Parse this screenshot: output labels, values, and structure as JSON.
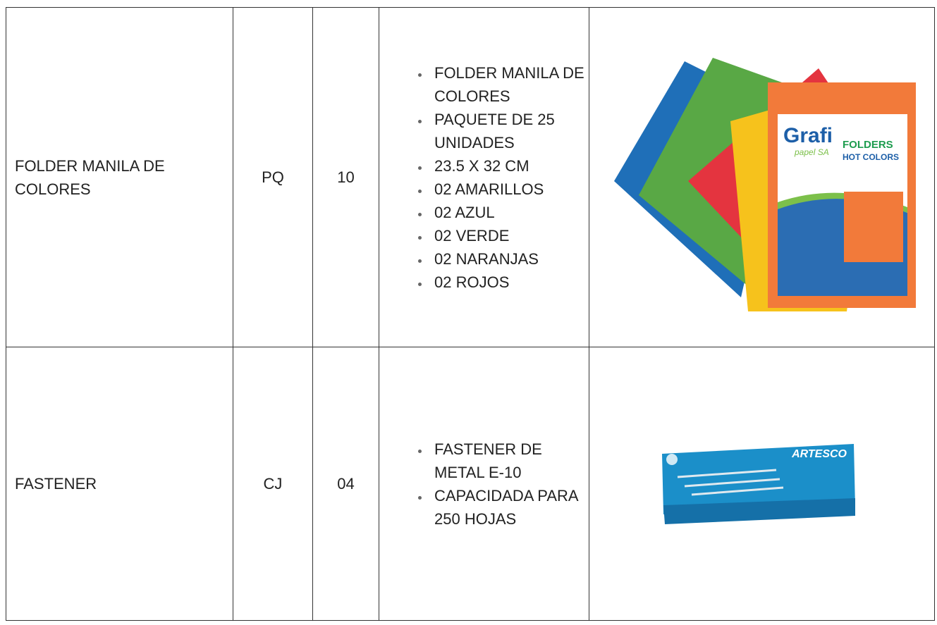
{
  "table": {
    "rows": [
      {
        "description": "FOLDER MANILA DE COLORES",
        "unit": "PQ",
        "quantity": "10",
        "details": [
          "FOLDER MANILA DE COLORES",
          "PAQUETE DE 25 UNIDADES",
          "23.5 X 32 CM",
          "02 AMARILLOS",
          "02 AZUL",
          "02 VERDE",
          "02 NARANJAS",
          "02 ROJOS"
        ],
        "image": {
          "brand": "Grafi",
          "brand_sub": "papel SA",
          "product": "FOLDERS",
          "line": "HOT COLORS"
        }
      },
      {
        "description": "FASTENER",
        "unit": "CJ",
        "quantity": "04",
        "details": [
          "FASTENER DE METAL E-10",
          "CAPACIDADA PARA 250 HOJAS"
        ],
        "image": {
          "brand": "ARTESCO"
        }
      }
    ]
  }
}
